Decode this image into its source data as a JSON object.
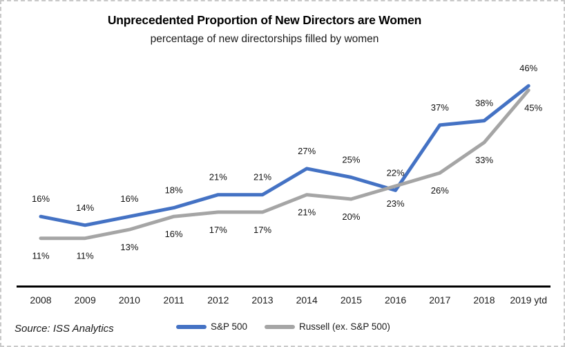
{
  "title": "Unprecedented Proportion of New Directors are Women",
  "subtitle": "percentage of new directorships filled by women",
  "source": "Source: ISS Analytics",
  "chart_data": {
    "type": "line",
    "categories": [
      "2008",
      "2009",
      "2010",
      "2011",
      "2012",
      "2013",
      "2014",
      "2015",
      "2016",
      "2017",
      "2018",
      "2019 ytd"
    ],
    "series": [
      {
        "name": "S&P 500",
        "color": "#4472C4",
        "values": [
          16,
          14,
          16,
          18,
          21,
          21,
          27,
          25,
          22,
          37,
          38,
          46
        ]
      },
      {
        "name": "Russell (ex. S&P 500)",
        "color": "#A5A5A5",
        "values": [
          11,
          11,
          13,
          16,
          17,
          17,
          21,
          20,
          23,
          26,
          33,
          45
        ]
      }
    ],
    "value_suffix": "%",
    "data_labels": true,
    "ylim": [
      0,
      50
    ],
    "grid": false,
    "y_axis_shown": false,
    "x_axis_line_color": "#000000",
    "legend_position": "bottom"
  }
}
